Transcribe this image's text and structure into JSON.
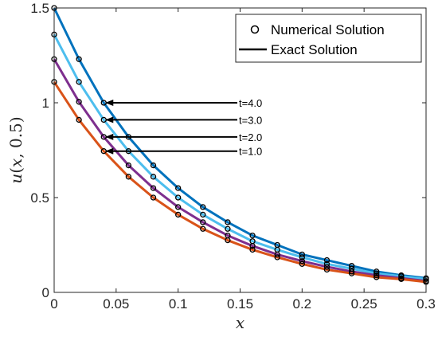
{
  "chart_data": {
    "type": "line",
    "xlabel": "x",
    "ylabel_parts": [
      "u",
      "(",
      "x",
      ", 0.5)"
    ],
    "xlim": [
      0,
      0.3
    ],
    "ylim": [
      0,
      1.5
    ],
    "xticks": [
      0,
      0.05,
      0.1,
      0.15,
      0.2,
      0.25,
      0.3
    ],
    "xtick_labels": [
      "0",
      "0.05",
      "0.1",
      "0.15",
      "0.2",
      "0.25",
      "0.3"
    ],
    "yticks": [
      0,
      0.5,
      1,
      1.5
    ],
    "ytick_labels": [
      "0",
      "0.5",
      "1",
      "1.5"
    ],
    "grid": false,
    "legend_position": "top-right",
    "legend": [
      {
        "label": "Numerical Solution",
        "marker": "circle"
      },
      {
        "label": "Exact Solution",
        "marker": "line"
      }
    ],
    "x": [
      0,
      0.02,
      0.04,
      0.06,
      0.08,
      0.1,
      0.12,
      0.14,
      0.16,
      0.18,
      0.2,
      0.22,
      0.24,
      0.26,
      0.28,
      0.3
    ],
    "series": [
      {
        "color": "#0072BD",
        "values": [
          1.5,
          1.23,
          1.0,
          0.82,
          0.67,
          0.55,
          0.45,
          0.37,
          0.3,
          0.25,
          0.2,
          0.17,
          0.14,
          0.11,
          0.09,
          0.075
        ]
      },
      {
        "color": "#4DBEEE",
        "values": [
          1.36,
          1.11,
          0.91,
          0.745,
          0.61,
          0.5,
          0.41,
          0.335,
          0.27,
          0.225,
          0.185,
          0.15,
          0.125,
          0.1,
          0.085,
          0.07
        ]
      },
      {
        "color": "#7E2F8E",
        "values": [
          1.23,
          1.005,
          0.82,
          0.67,
          0.55,
          0.45,
          0.37,
          0.3,
          0.245,
          0.2,
          0.165,
          0.135,
          0.11,
          0.09,
          0.075,
          0.06
        ]
      },
      {
        "color": "#D95319",
        "values": [
          1.11,
          0.91,
          0.745,
          0.61,
          0.5,
          0.41,
          0.335,
          0.275,
          0.225,
          0.185,
          0.15,
          0.12,
          0.1,
          0.08,
          0.07,
          0.055
        ]
      }
    ],
    "annotations": [
      {
        "text": "t=4.0",
        "arrow_to": [
          0.04,
          1.0
        ]
      },
      {
        "text": "t=3.0",
        "arrow_to": [
          0.04,
          0.91
        ]
      },
      {
        "text": "t=2.0",
        "arrow_to": [
          0.04,
          0.82
        ]
      },
      {
        "text": "t=1.0",
        "arrow_to": [
          0.04,
          0.745
        ]
      }
    ]
  }
}
